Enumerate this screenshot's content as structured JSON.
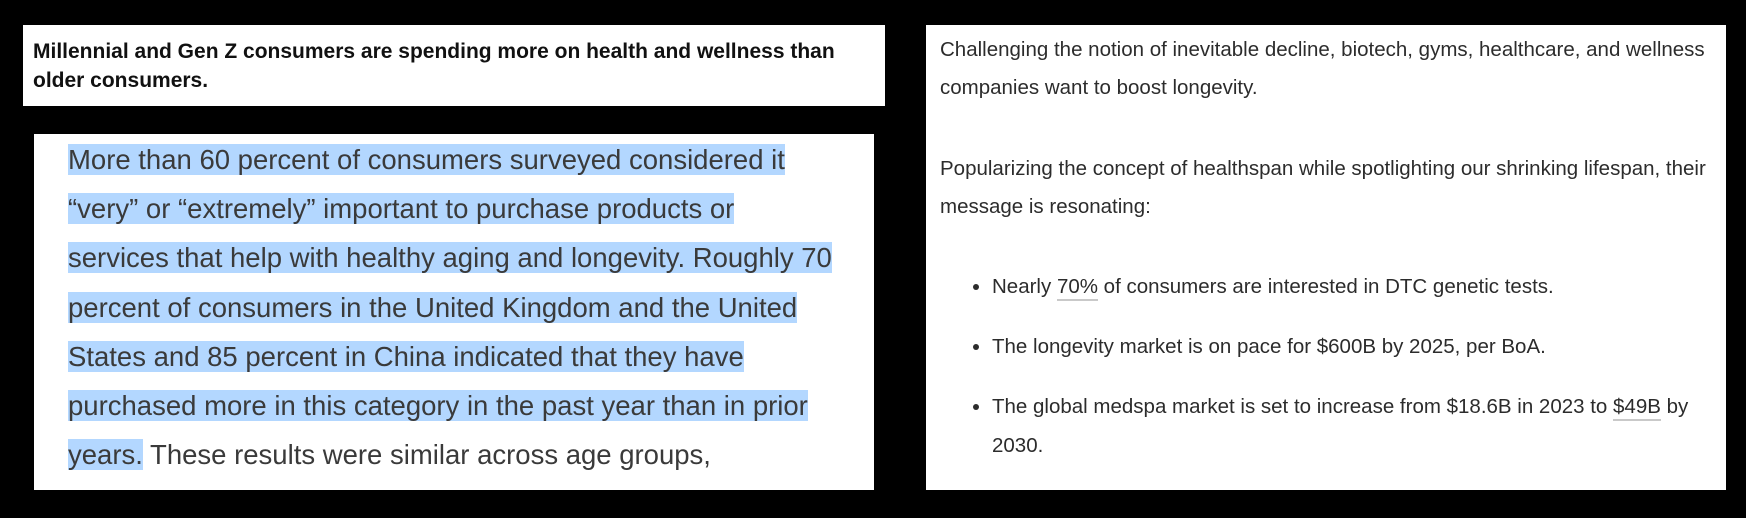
{
  "left_title": {
    "text": "Millennial and Gen Z consumers are spending more on health and wellness than older consumers."
  },
  "left_article": {
    "selected_text": "More than 60 percent of consumers surveyed considered it “very” or “extremely” important to purchase products or services that help with healthy aging and longevity. Roughly 70 percent of consumers in the United Kingdom and the United States and 85 percent in China indicated that they have purchased more in this category in the past year than in prior years.",
    "unselected_text": " These results were similar across age groups,",
    "selection_color": "#b3d7ff"
  },
  "right_panel": {
    "paragraph1": "Challenging the notion of inevitable decline, biotech, gyms, healthcare, and wellness companies want to boost longevity.",
    "paragraph2": "Popularizing the concept of healthspan while spotlighting our shrinking lifespan, their message is resonating:",
    "bullets": [
      {
        "before": "Nearly ",
        "link": "70%",
        "after": " of consumers are interested in DTC genetic tests."
      },
      {
        "text": "The longevity market is on pace for $600B by 2025, per BoA."
      },
      {
        "before": "The global medspa market is set to increase from $18.6B in 2023 to ",
        "link": "$49B",
        "after": " by 2030."
      }
    ]
  }
}
